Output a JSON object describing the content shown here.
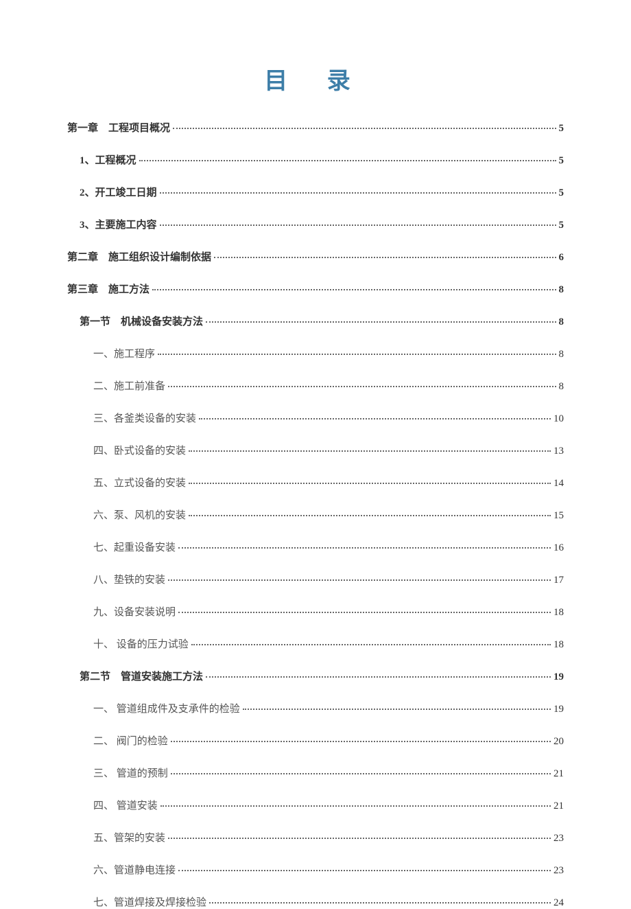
{
  "title": "目 录",
  "title_color": "#3d7ea8",
  "title_fontsize": 34,
  "background_color": "#ffffff",
  "text_color": "#333333",
  "entry_fontsize": 15,
  "line_spacing": 26,
  "entries": [
    {
      "label": "第一章　工程项目概况",
      "page": "5",
      "level": 0
    },
    {
      "label": "1、工程概况",
      "page": "5",
      "level": 1
    },
    {
      "label": "2、开工竣工日期",
      "page": "5",
      "level": 1
    },
    {
      "label": "3、主要施工内容",
      "page": "5",
      "level": 1
    },
    {
      "label": "第二章　施工组织设计编制依据",
      "page": "6",
      "level": 0
    },
    {
      "label": "第三章　施工方法",
      "page": "8",
      "level": 0
    },
    {
      "label": "第一节　机械设备安装方法",
      "page": "8",
      "level": 2
    },
    {
      "label": "一、施工程序",
      "page": "8",
      "level": 3
    },
    {
      "label": "二、施工前准备",
      "page": "8",
      "level": 3
    },
    {
      "label": "三、各釜类设备的安装",
      "page": "10",
      "level": 3
    },
    {
      "label": "四、卧式设备的安装",
      "page": "13",
      "level": 3
    },
    {
      "label": "五、立式设备的安装",
      "page": "14",
      "level": 3
    },
    {
      "label": "六、泵、风机的安装",
      "page": "15",
      "level": 3
    },
    {
      "label": "七、起重设备安装",
      "page": "16",
      "level": 3
    },
    {
      "label": "八、垫铁的安装",
      "page": "17",
      "level": 3
    },
    {
      "label": "九、设备安装说明",
      "page": "18",
      "level": 3
    },
    {
      "label": "十、 设备的压力试验",
      "page": "18",
      "level": 3
    },
    {
      "label": "第二节　管道安装施工方法",
      "page": "19",
      "level": 2
    },
    {
      "label": "一、 管道组成件及支承件的检验",
      "page": "19",
      "level": 3
    },
    {
      "label": "二、 阀门的检验",
      "page": "20",
      "level": 3
    },
    {
      "label": "三、 管道的预制",
      "page": "21",
      "level": 3
    },
    {
      "label": "四、 管道安装",
      "page": "21",
      "level": 3
    },
    {
      "label": "五、管架的安装",
      "page": "23",
      "level": 3
    },
    {
      "label": "六、管道静电连接",
      "page": "23",
      "level": 3
    },
    {
      "label": "七、管道焊接及焊接检验",
      "page": "24",
      "level": 3
    }
  ]
}
